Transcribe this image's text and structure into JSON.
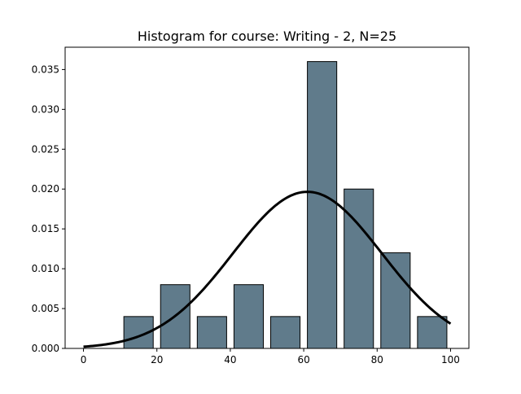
{
  "chart_data": {
    "type": "bar",
    "title": "Histogram for course: Writing - 2,  N=25",
    "xlabel": "",
    "ylabel": "",
    "xlim": [
      -5,
      105
    ],
    "ylim": [
      0,
      0.0378
    ],
    "xticks": [
      {
        "value": 0,
        "label": "0"
      },
      {
        "value": 20,
        "label": "20"
      },
      {
        "value": 40,
        "label": "40"
      },
      {
        "value": 60,
        "label": "60"
      },
      {
        "value": 80,
        "label": "80"
      },
      {
        "value": 100,
        "label": "100"
      }
    ],
    "yticks": [
      {
        "value": 0.0,
        "label": "0.000"
      },
      {
        "value": 0.005,
        "label": "0.005"
      },
      {
        "value": 0.01,
        "label": "0.010"
      },
      {
        "value": 0.015,
        "label": "0.015"
      },
      {
        "value": 0.02,
        "label": "0.020"
      },
      {
        "value": 0.025,
        "label": "0.025"
      },
      {
        "value": 0.03,
        "label": "0.030"
      },
      {
        "value": 0.035,
        "label": "0.035"
      }
    ],
    "bars": [
      {
        "bin_start": 10,
        "bin_end": 20,
        "value": 0.004
      },
      {
        "bin_start": 20,
        "bin_end": 30,
        "value": 0.008
      },
      {
        "bin_start": 30,
        "bin_end": 40,
        "value": 0.004
      },
      {
        "bin_start": 40,
        "bin_end": 50,
        "value": 0.008
      },
      {
        "bin_start": 50,
        "bin_end": 60,
        "value": 0.004
      },
      {
        "bin_start": 60,
        "bin_end": 70,
        "value": 0.036
      },
      {
        "bin_start": 70,
        "bin_end": 80,
        "value": 0.02
      },
      {
        "bin_start": 80,
        "bin_end": 90,
        "value": 0.012
      },
      {
        "bin_start": 90,
        "bin_end": 100,
        "value": 0.004
      }
    ],
    "curve": {
      "type": "normal-pdf",
      "mean": 61.0,
      "std": 20.3,
      "x_range": [
        0,
        100
      ]
    },
    "bar_color": "#607b8b",
    "bar_edge_color": "#000000",
    "curve_color": "#000000",
    "grid": false
  }
}
